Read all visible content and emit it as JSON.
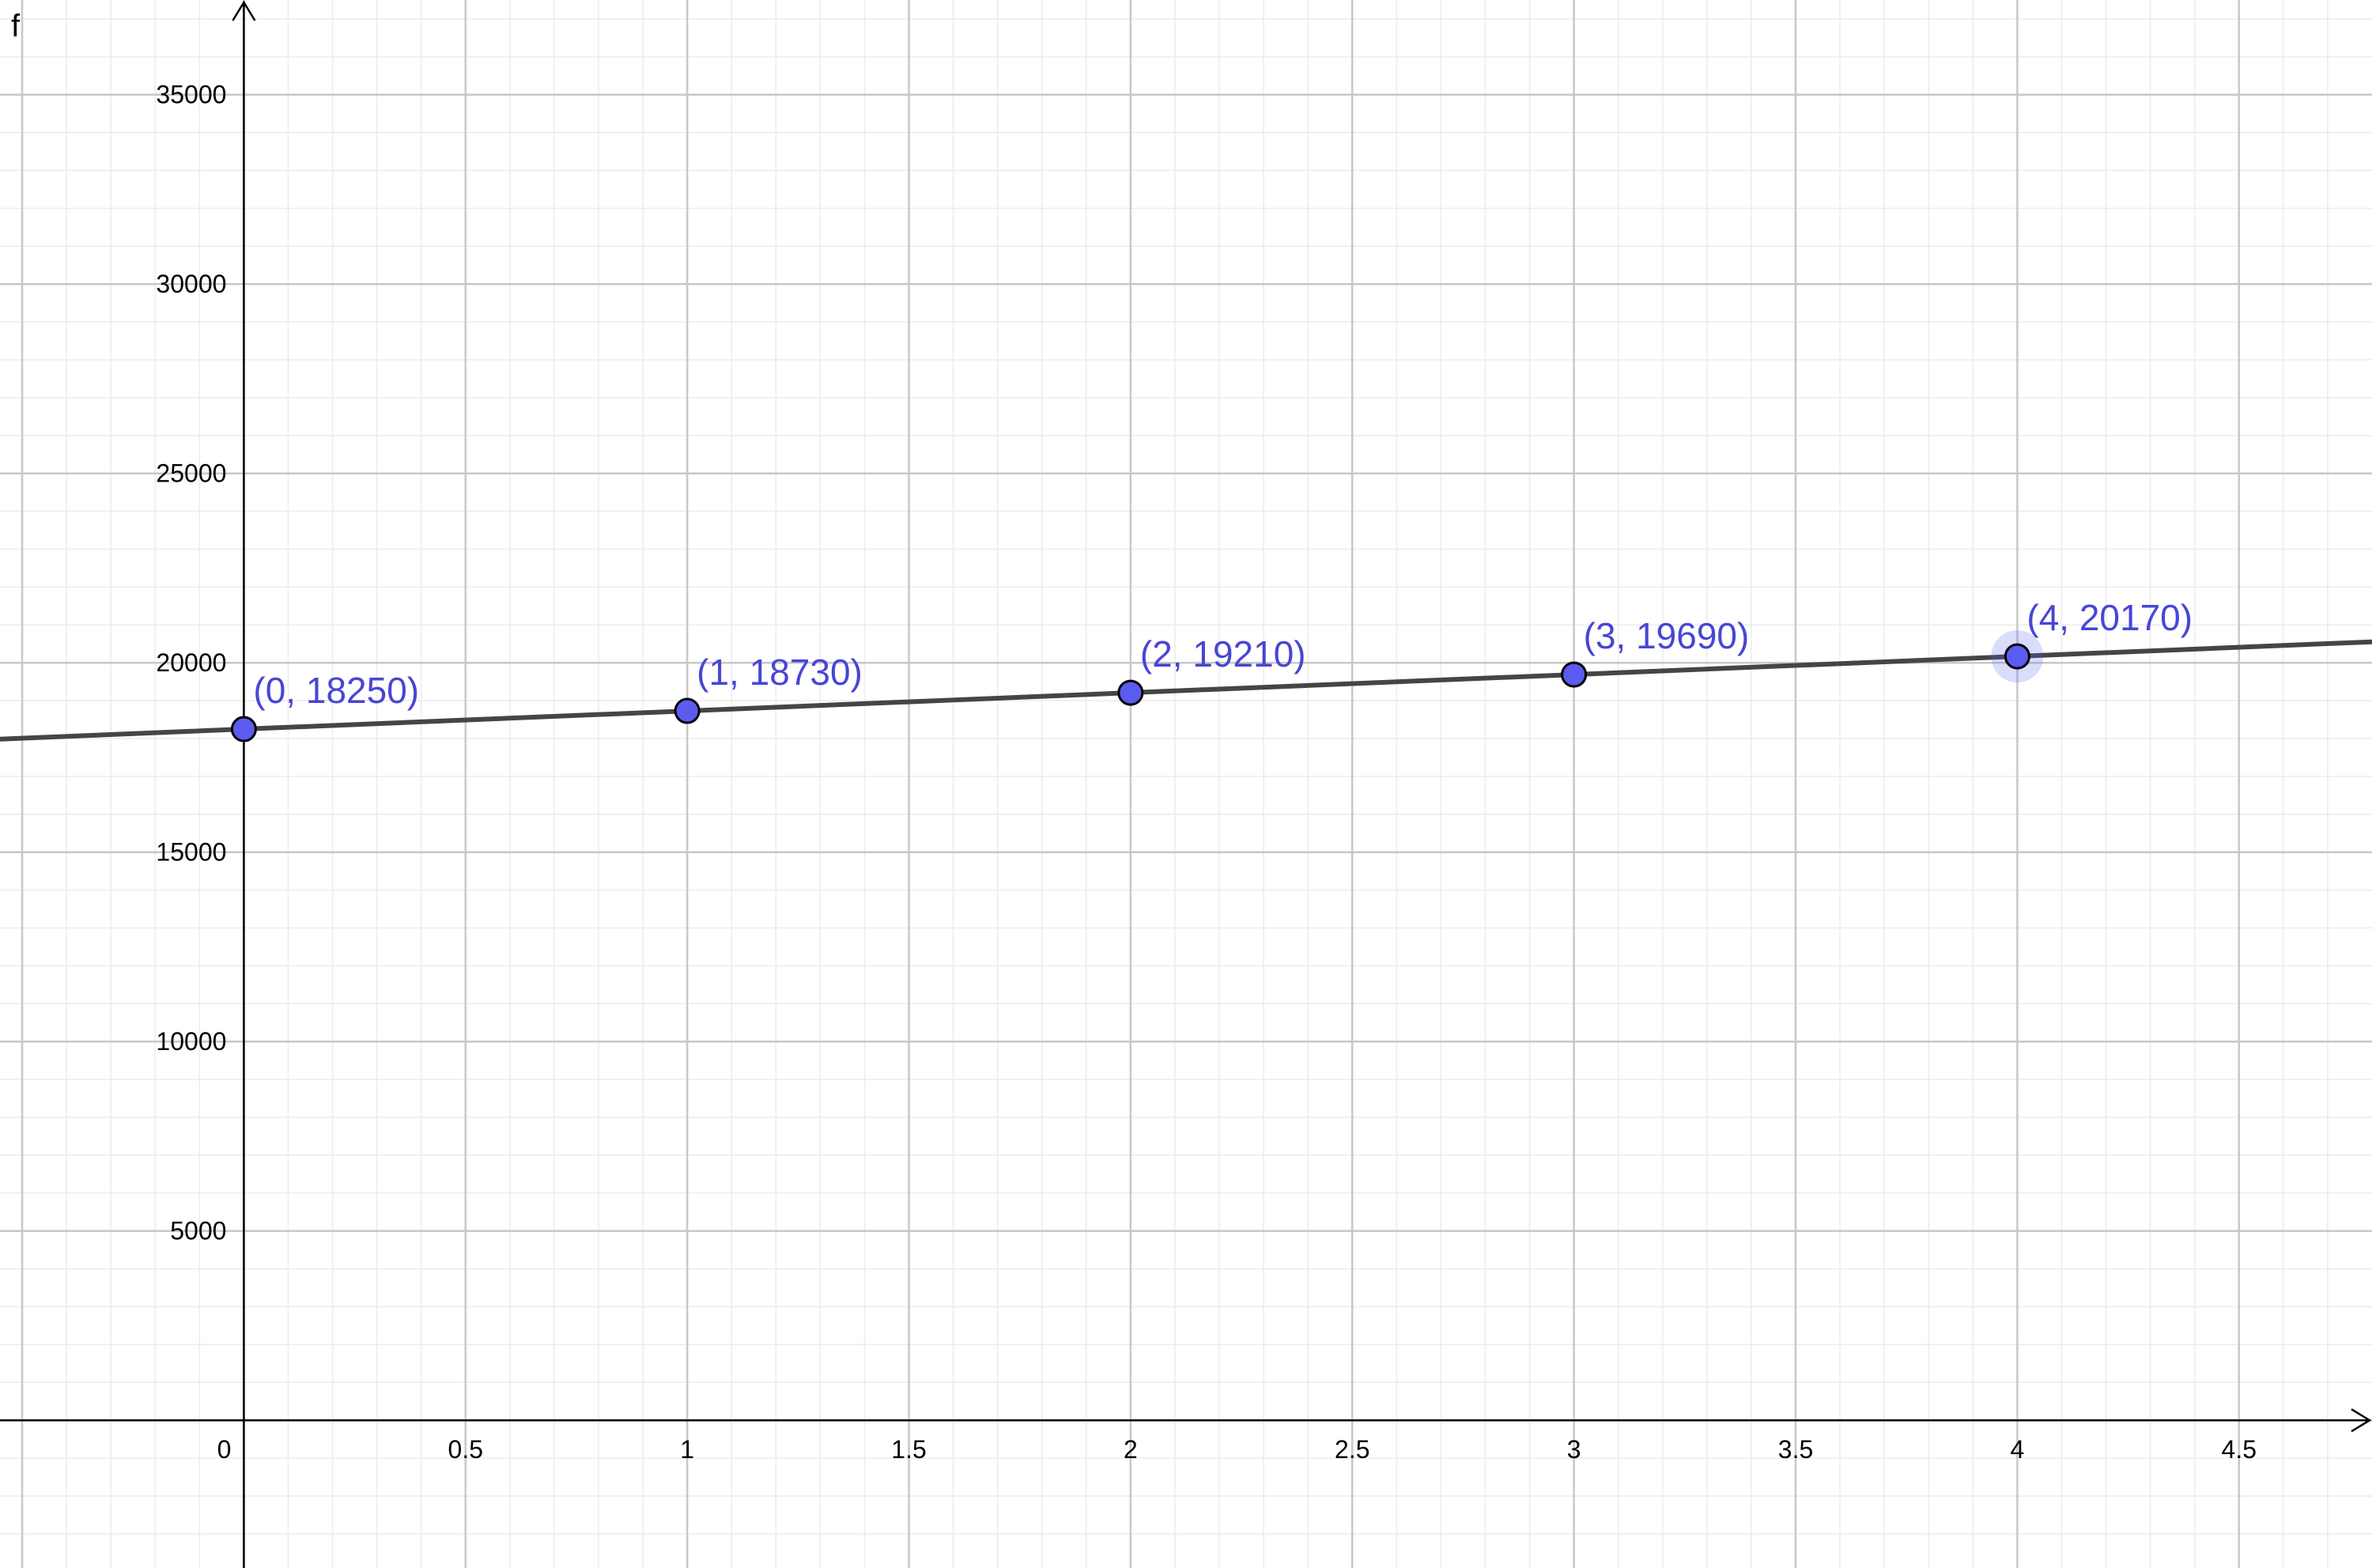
{
  "chart_data": {
    "type": "scatter",
    "ylabel": "f",
    "xlim": [
      -0.55,
      4.8
    ],
    "ylim": [
      -3900,
      37500
    ],
    "grid": true,
    "x_ticks": [
      {
        "value": 0,
        "label": "0"
      },
      {
        "value": 0.5,
        "label": "0.5"
      },
      {
        "value": 1,
        "label": "1"
      },
      {
        "value": 1.5,
        "label": "1.5"
      },
      {
        "value": 2,
        "label": "2"
      },
      {
        "value": 2.5,
        "label": "2.5"
      },
      {
        "value": 3,
        "label": "3"
      },
      {
        "value": 3.5,
        "label": "3.5"
      },
      {
        "value": 4,
        "label": "4"
      },
      {
        "value": 4.5,
        "label": "4.5"
      }
    ],
    "y_ticks": [
      {
        "value": 5000,
        "label": "5000"
      },
      {
        "value": 10000,
        "label": "10000"
      },
      {
        "value": 15000,
        "label": "15000"
      },
      {
        "value": 20000,
        "label": "20000"
      },
      {
        "value": 25000,
        "label": "25000"
      },
      {
        "value": 30000,
        "label": "30000"
      },
      {
        "value": 35000,
        "label": "35000"
      }
    ],
    "points": [
      {
        "x": 0,
        "y": 18250,
        "label": "(0, 18250)"
      },
      {
        "x": 1,
        "y": 18730,
        "label": "(1, 18730)"
      },
      {
        "x": 2,
        "y": 19210,
        "label": "(2, 19210)"
      },
      {
        "x": 3,
        "y": 19690,
        "label": "(3, 19690)"
      },
      {
        "x": 4,
        "y": 20170,
        "label": "(4, 20170)"
      }
    ],
    "line": {
      "intercept": 18250,
      "slope": 480
    },
    "highlighted_point_index": 4,
    "colors": {
      "point_fill": "#5b5bf0",
      "point_label": "#4646d6",
      "line": "#454545",
      "axis": "#000000",
      "major_grid": "#c8c8c8",
      "minor_grid": "#ececec"
    }
  }
}
